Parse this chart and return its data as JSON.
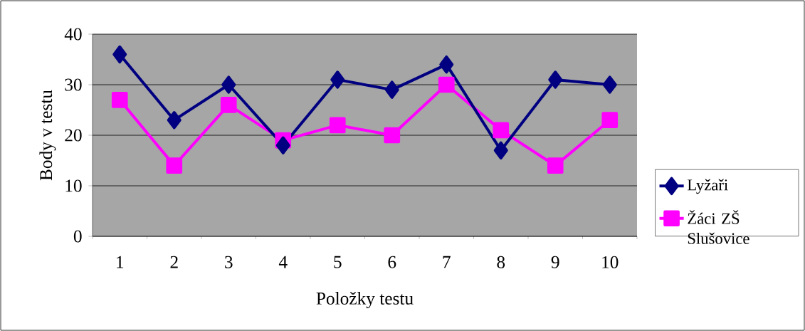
{
  "chart_data": {
    "type": "line",
    "xlabel": "Položky testu",
    "ylabel": "Body v testu",
    "categories": [
      "1",
      "2",
      "3",
      "4",
      "5",
      "6",
      "7",
      "8",
      "9",
      "10"
    ],
    "series": [
      {
        "name": "Lyžaři",
        "color": "#000080",
        "marker": "diamond",
        "values": [
          36,
          23,
          30,
          18,
          31,
          29,
          34,
          17,
          31,
          30
        ]
      },
      {
        "name": "Žáci ZŠ Slušovice",
        "color": "#ff00ff",
        "marker": "square",
        "values": [
          27,
          14,
          26,
          19,
          22,
          20,
          30,
          21,
          14,
          23
        ]
      }
    ],
    "ylim": [
      0,
      40
    ],
    "yticks": [
      0,
      10,
      20,
      30,
      40
    ],
    "grid": "y",
    "legend": "right",
    "line_style": "solid"
  }
}
